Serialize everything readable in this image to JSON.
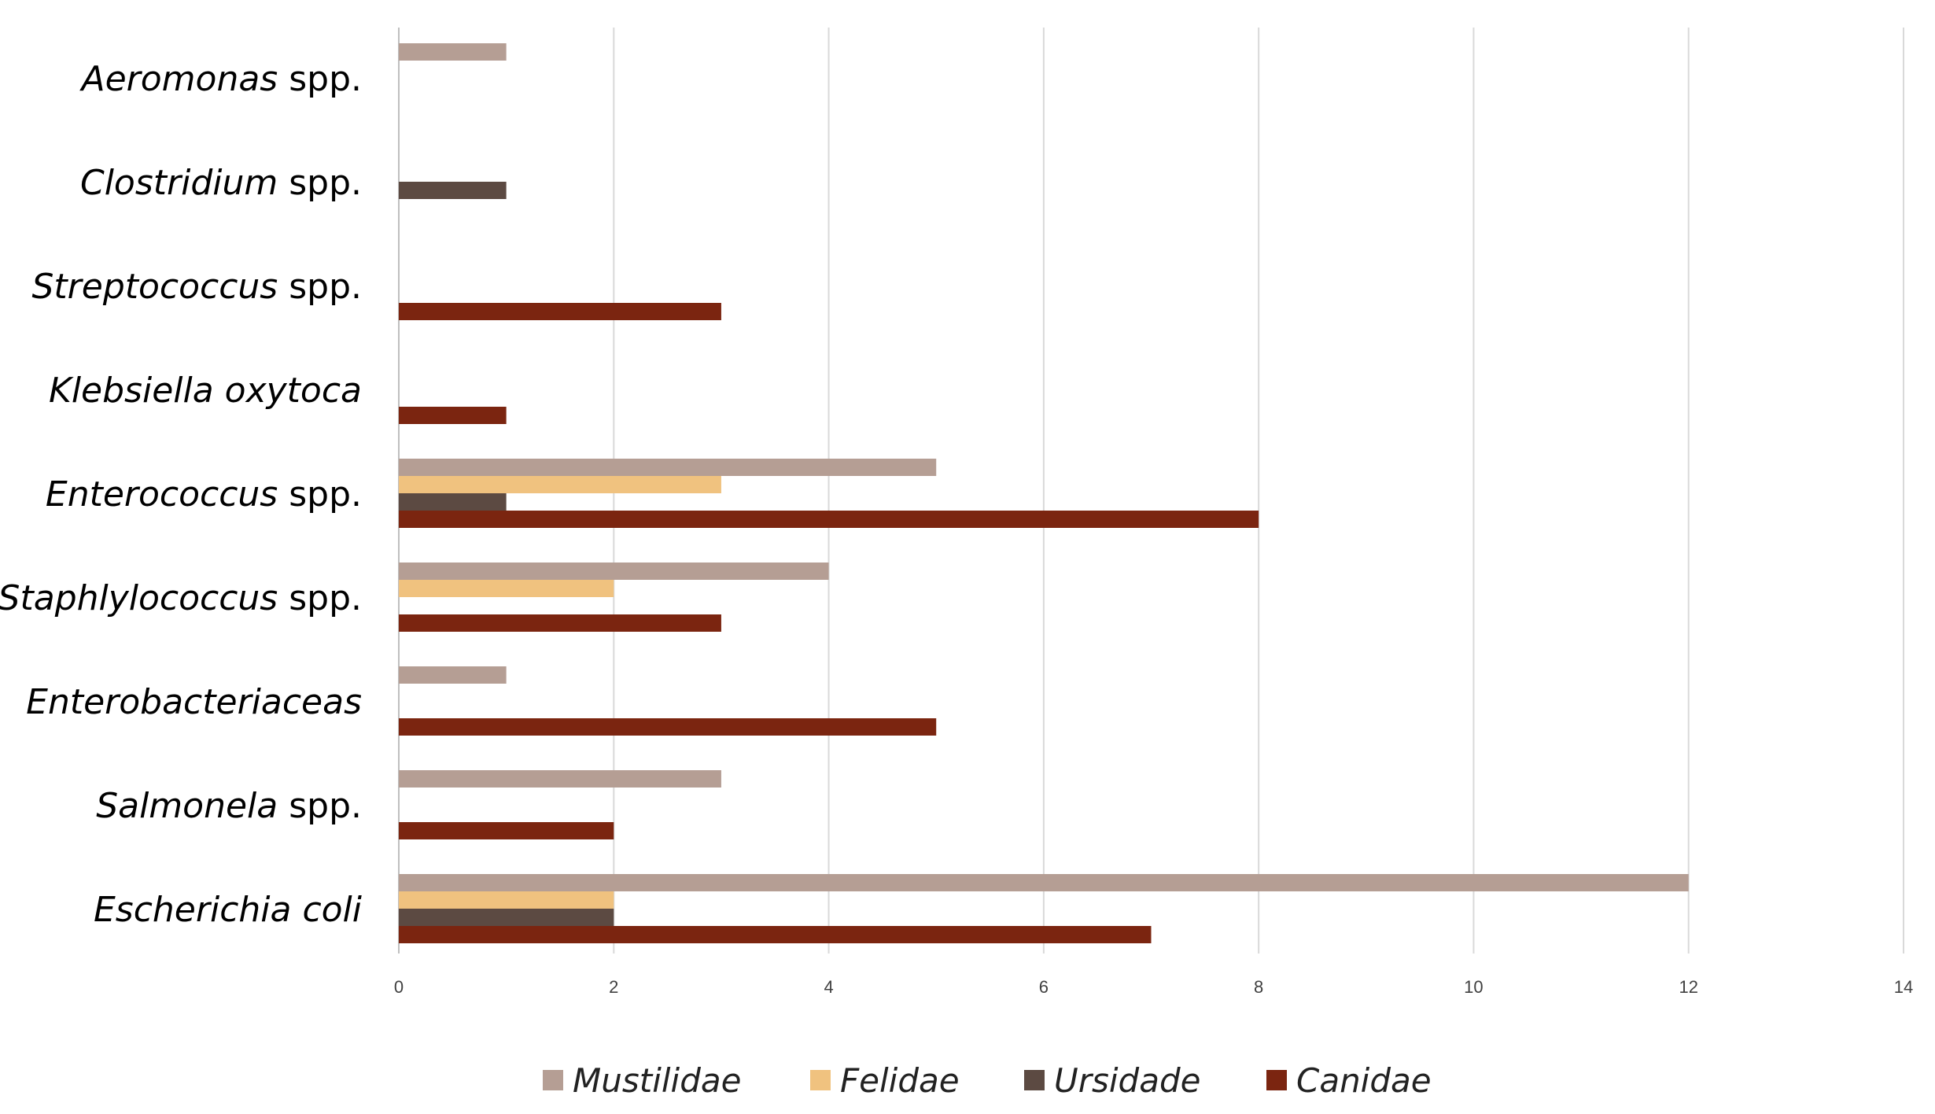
{
  "chart_data": {
    "type": "bar",
    "orientation": "horizontal",
    "title": "",
    "xlabel": "",
    "ylabel": "",
    "xlim": [
      0,
      14
    ],
    "xticks": [
      0,
      2,
      4,
      6,
      8,
      10,
      12,
      14
    ],
    "grid": true,
    "legend_position": "bottom",
    "categories": [
      {
        "italic": "Aeromonas",
        "plain": " spp."
      },
      {
        "italic": "Clostridium",
        "plain": " spp."
      },
      {
        "italic": "Streptococcus",
        "plain": " spp."
      },
      {
        "italic": "Klebsiella oxytoca",
        "plain": ""
      },
      {
        "italic": "Enterococcus",
        "plain": " spp."
      },
      {
        "italic": "Staphlylococcus",
        "plain": " spp."
      },
      {
        "italic": "Enterobacteriaceas",
        "plain": ""
      },
      {
        "italic": "Salmonela",
        "plain": " spp."
      },
      {
        "italic": "Escherichia  coli",
        "plain": ""
      }
    ],
    "series": [
      {
        "name": "Mustilidae",
        "color": "#b59e94",
        "values": [
          1,
          0,
          0,
          0,
          5,
          4,
          1,
          3,
          12
        ]
      },
      {
        "name": "Felidae",
        "color": "#f0c27f",
        "values": [
          0,
          0,
          0,
          0,
          3,
          2,
          0,
          0,
          2
        ]
      },
      {
        "name": "Ursidade",
        "color": "#5c4a42",
        "values": [
          0,
          1,
          0,
          0,
          1,
          0,
          0,
          0,
          2
        ]
      },
      {
        "name": "Canidae",
        "color": "#7b2510",
        "values": [
          0,
          0,
          3,
          1,
          8,
          3,
          5,
          2,
          7
        ]
      }
    ]
  }
}
